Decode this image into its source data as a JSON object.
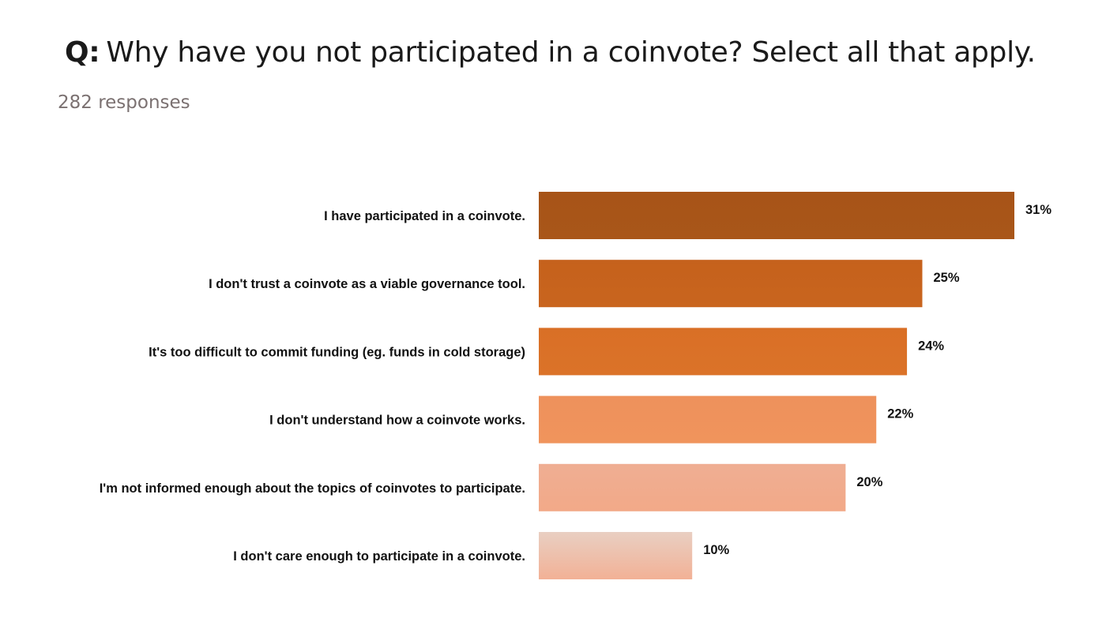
{
  "header": {
    "q_prefix": "Q:",
    "question": "Why have you not participated in a coinvote? Select all that apply.",
    "responses": "282 responses"
  },
  "chart_data": {
    "type": "bar",
    "orientation": "horizontal",
    "categories": [
      "I have participated in a coinvote.",
      "I don't trust a coinvote as a viable governance tool.",
      "It's too difficult to commit funding (eg. funds in cold storage)",
      "I don't understand how a coinvote works.",
      "I'm not informed enough about the topics of coinvotes to participate.",
      "I don't care enough to participate in a coinvote."
    ],
    "values": [
      31,
      25,
      24,
      22,
      20,
      10
    ],
    "value_labels": [
      "31%",
      "25%",
      "24%",
      "22%",
      "20%",
      "10%"
    ],
    "bar_colors": [
      [
        "#a75418",
        "#a95619"
      ],
      [
        "#c5611c",
        "#c9651e"
      ],
      [
        "#d96f26",
        "#db7329"
      ],
      [
        "#ee915c",
        "#f0945c"
      ],
      [
        "#efae93",
        "#f2a988"
      ],
      [
        "#e9cfc2",
        "#f2b196"
      ]
    ],
    "xlim": [
      0,
      31
    ],
    "grid": false,
    "legend": "none",
    "xlabel": "",
    "ylabel": ""
  }
}
